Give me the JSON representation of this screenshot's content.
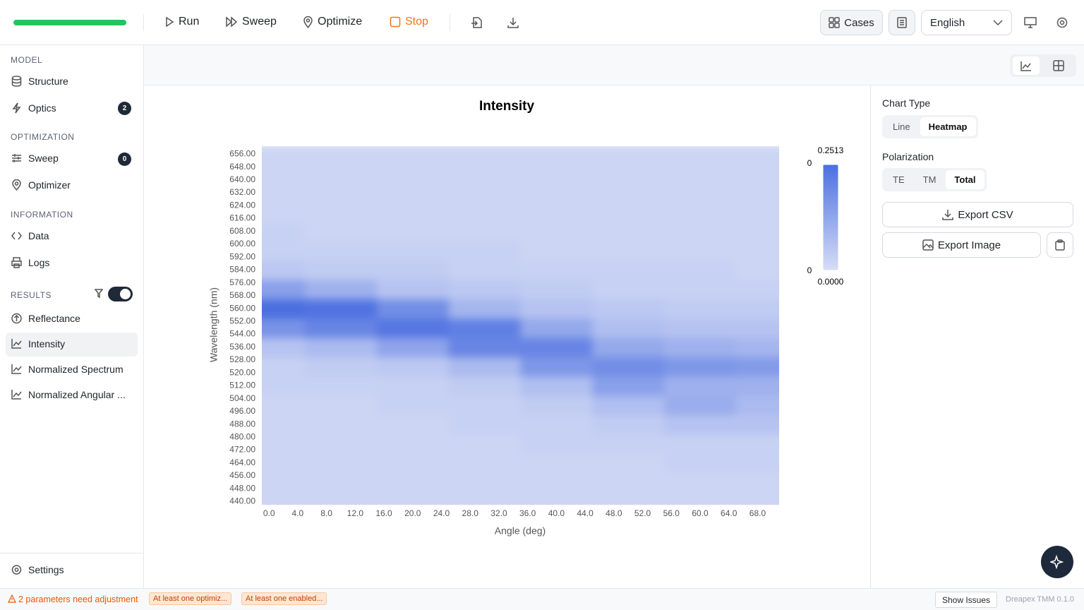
{
  "toolbar": {
    "run": "Run",
    "sweep": "Sweep",
    "optimize": "Optimize",
    "stop": "Stop",
    "cases": "Cases",
    "language": "English"
  },
  "sidebar": {
    "model": "MODEL",
    "structure": "Structure",
    "optics": "Optics",
    "optics_badge": 2,
    "optimization": "OPTIMIZATION",
    "sweep": "Sweep",
    "sweep_badge": 0,
    "optimizer": "Optimizer",
    "information": "INFORMATION",
    "data": "Data",
    "logs": "Logs",
    "results": "RESULTS",
    "reflectance": "Reflectance",
    "intensity": "Intensity",
    "normalized_spectrum": "Normalized Spectrum",
    "normalized_angular": "Normalized Angular ...",
    "settings": "Settings"
  },
  "panel": {
    "chart_type": "Chart Type",
    "chart_type_options": [
      "Line",
      "Heatmap"
    ],
    "polarization": "Polarization",
    "polarization_options": [
      "TE",
      "TM",
      "Total"
    ],
    "export_csv": "Export CSV",
    "export_image": "Export Image"
  },
  "status": {
    "warning": "2 parameters need adjustment",
    "tags": [
      "At least one optimiz...",
      "At least one enabled..."
    ],
    "show_issues": "Show Issues",
    "version": "Dreapex TMM 0.1.0"
  },
  "chart_data": {
    "type": "heatmap",
    "title": "Intensity",
    "x_label": "Angle (deg)",
    "y_label": "Wavelength (nm)",
    "x": [
      0,
      10,
      20,
      30,
      40,
      50,
      60,
      70
    ],
    "y": [
      440,
      452,
      464,
      476,
      488,
      500,
      512,
      524,
      536,
      548,
      560,
      572,
      584,
      596,
      608,
      620,
      632,
      644,
      656
    ],
    "values": [
      [
        0.02,
        0.02,
        0.02,
        0.02,
        0.02,
        0.02,
        0.03,
        0.03,
        0.06,
        0.17,
        0.25,
        0.14,
        0.05,
        0.03,
        0.03,
        0.02,
        0.02,
        0.02,
        0.02
      ],
      [
        0.02,
        0.02,
        0.02,
        0.02,
        0.02,
        0.02,
        0.03,
        0.04,
        0.08,
        0.2,
        0.24,
        0.1,
        0.04,
        0.03,
        0.02,
        0.02,
        0.02,
        0.02,
        0.02
      ],
      [
        0.02,
        0.02,
        0.02,
        0.02,
        0.02,
        0.03,
        0.03,
        0.05,
        0.13,
        0.23,
        0.18,
        0.06,
        0.04,
        0.03,
        0.02,
        0.02,
        0.02,
        0.02,
        0.02
      ],
      [
        0.02,
        0.02,
        0.02,
        0.02,
        0.03,
        0.03,
        0.04,
        0.08,
        0.2,
        0.21,
        0.09,
        0.05,
        0.03,
        0.03,
        0.02,
        0.02,
        0.02,
        0.02,
        0.02
      ],
      [
        0.02,
        0.02,
        0.02,
        0.03,
        0.03,
        0.04,
        0.07,
        0.16,
        0.2,
        0.12,
        0.06,
        0.04,
        0.03,
        0.02,
        0.02,
        0.02,
        0.02,
        0.02,
        0.02
      ],
      [
        0.02,
        0.02,
        0.02,
        0.03,
        0.04,
        0.07,
        0.14,
        0.18,
        0.12,
        0.07,
        0.05,
        0.03,
        0.03,
        0.02,
        0.02,
        0.02,
        0.02,
        0.02,
        0.02
      ],
      [
        0.02,
        0.02,
        0.03,
        0.03,
        0.06,
        0.11,
        0.1,
        0.16,
        0.1,
        0.06,
        0.04,
        0.03,
        0.03,
        0.02,
        0.02,
        0.02,
        0.02,
        0.02,
        0.02
      ],
      [
        0.02,
        0.02,
        0.03,
        0.03,
        0.06,
        0.08,
        0.1,
        0.15,
        0.09,
        0.06,
        0.04,
        0.03,
        0.02,
        0.02,
        0.02,
        0.02,
        0.02,
        0.02,
        0.02
      ]
    ],
    "xlim": [
      -1,
      71
    ],
    "ylim": [
      438,
      661
    ],
    "xticks": [
      {
        "value": 0,
        "label": "0.0"
      },
      {
        "value": 4,
        "label": "4.0"
      },
      {
        "value": 8,
        "label": "8.0"
      },
      {
        "value": 12,
        "label": "12.0"
      },
      {
        "value": 16,
        "label": "16.0"
      },
      {
        "value": 20,
        "label": "20.0"
      },
      {
        "value": 24,
        "label": "24.0"
      },
      {
        "value": 28,
        "label": "28.0"
      },
      {
        "value": 32,
        "label": "32.0"
      },
      {
        "value": 36,
        "label": "36.0"
      },
      {
        "value": 40,
        "label": "40.0"
      },
      {
        "value": 44,
        "label": "44.0"
      },
      {
        "value": 48,
        "label": "48.0"
      },
      {
        "value": 52,
        "label": "52.0"
      },
      {
        "value": 56,
        "label": "56.0"
      },
      {
        "value": 60,
        "label": "60.0"
      },
      {
        "value": 64,
        "label": "64.0"
      },
      {
        "value": 68,
        "label": "68.0"
      }
    ],
    "yticks": [
      {
        "value": 440,
        "label": "440.00"
      },
      {
        "value": 448,
        "label": "448.00"
      },
      {
        "value": 456,
        "label": "456.00"
      },
      {
        "value": 464,
        "label": "464.00"
      },
      {
        "value": 472,
        "label": "472.00"
      },
      {
        "value": 480,
        "label": "480.00"
      },
      {
        "value": 488,
        "label": "488.00"
      },
      {
        "value": 496,
        "label": "496.00"
      },
      {
        "value": 504,
        "label": "504.00"
      },
      {
        "value": 512,
        "label": "512.00"
      },
      {
        "value": 520,
        "label": "520.00"
      },
      {
        "value": 528,
        "label": "528.00"
      },
      {
        "value": 536,
        "label": "536.00"
      },
      {
        "value": 544,
        "label": "544.00"
      },
      {
        "value": 552,
        "label": "552.00"
      },
      {
        "value": 560,
        "label": "560.00"
      },
      {
        "value": 568,
        "label": "568.00"
      },
      {
        "value": 576,
        "label": "576.00"
      },
      {
        "value": 584,
        "label": "584.00"
      },
      {
        "value": 592,
        "label": "592.00"
      },
      {
        "value": 600,
        "label": "600.00"
      },
      {
        "value": 608,
        "label": "608.00"
      },
      {
        "value": 616,
        "label": "616.00"
      },
      {
        "value": 624,
        "label": "624.00"
      },
      {
        "value": 632,
        "label": "632.00"
      },
      {
        "value": 640,
        "label": "640.00"
      },
      {
        "value": 648,
        "label": "648.00"
      },
      {
        "value": 656,
        "label": "656.00"
      }
    ],
    "zlim": [
      0,
      0.2513
    ],
    "zticks": [
      0.2513,
      {
        "value": 0,
        "label": "0.0000"
      }
    ],
    "colorbar_edge_labels": [
      "0",
      "0"
    ],
    "color_low": "#d8def6",
    "color_high": "#4a6ee0"
  }
}
